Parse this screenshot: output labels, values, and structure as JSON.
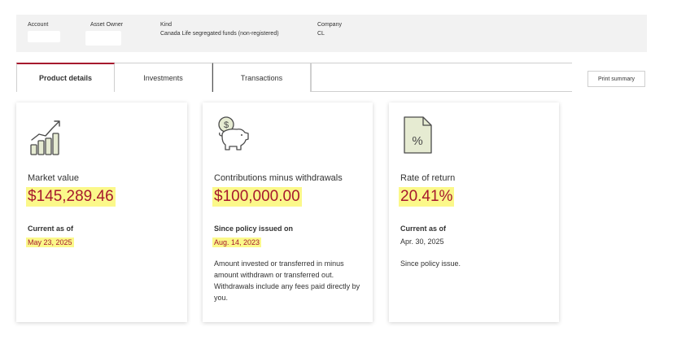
{
  "header": {
    "account_label": "Account",
    "owner_label": "Asset Owner",
    "kind_label": "Kind",
    "kind_value": "Canada Life segregated funds (non-registered)",
    "company_label": "Company",
    "company_value": "CL"
  },
  "tabs": [
    {
      "label": "Product details",
      "active": true
    },
    {
      "label": "Investments",
      "active": false
    },
    {
      "label": "Transactions",
      "active": false
    }
  ],
  "print_button": "Print summary",
  "cards": [
    {
      "icon": "growth-chart-icon",
      "title": "Market value",
      "amount": "$145,289.46",
      "sub_label": "Current as of",
      "sub_value": "May 23, 2025"
    },
    {
      "icon": "piggy-bank-dollar-icon",
      "title": "Contributions minus withdrawals",
      "amount": "$100,000.00",
      "sub_label": "Since policy issued on",
      "sub_value": "Aug. 14, 2023",
      "description": "Amount invested or transferred in minus amount withdrawn or transferred out. Withdrawals include any fees paid directly by you."
    },
    {
      "icon": "percent-document-icon",
      "title": "Rate of return",
      "amount": "20.41%",
      "sub_label": "Current as of",
      "sub_value": "Apr. 30, 2025",
      "description": "Since policy issue."
    }
  ],
  "colors": {
    "accent": "#a6192e",
    "highlight": "#fbf88a",
    "icon_fill": "#e6ebd2",
    "header_bg": "#f2f2f2"
  }
}
